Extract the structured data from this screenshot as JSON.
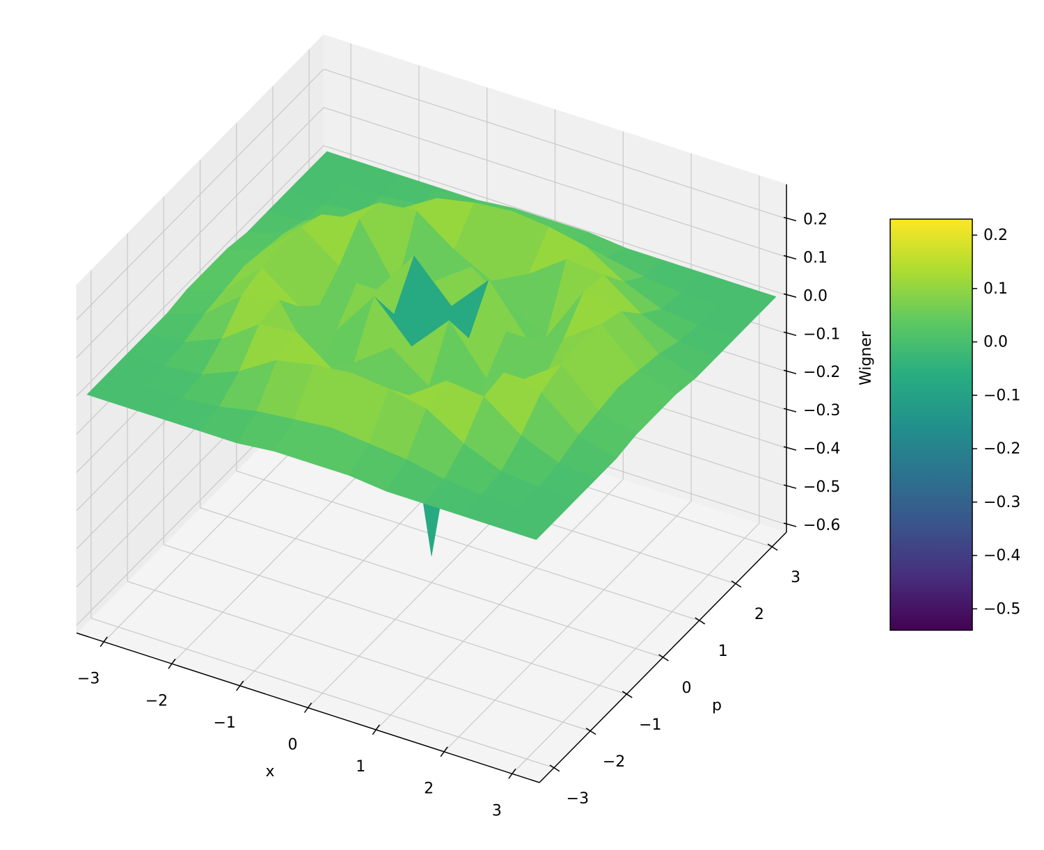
{
  "chart_data": {
    "type": "surface3d",
    "xlabel": "x",
    "ylabel": "p",
    "zlabel": "Wigner",
    "x": [
      -3.3,
      -2.75,
      -2.2,
      -1.65,
      -1.1,
      -0.55,
      0,
      0.55,
      1.1,
      1.65,
      2.2,
      2.75,
      3.3
    ],
    "y": [
      -3.3,
      -2.75,
      -2.2,
      -1.65,
      -1.1,
      -0.55,
      0,
      0.55,
      1.1,
      1.65,
      2.2,
      2.75,
      3.3
    ],
    "z": [
      [
        0,
        0,
        0,
        0,
        0,
        0.01,
        0.01,
        0.01,
        0,
        0,
        0,
        0,
        0
      ],
      [
        0,
        0,
        0,
        0.01,
        0.03,
        0.04,
        0.05,
        0.04,
        0.03,
        0.01,
        0,
        0,
        0
      ],
      [
        0,
        0,
        0.01,
        0.05,
        0.11,
        0.13,
        0.14,
        0.13,
        0.11,
        0.05,
        0.01,
        0,
        0
      ],
      [
        0,
        0.01,
        0.05,
        0.12,
        0.13,
        0.06,
        0.01,
        0.06,
        0.13,
        0.12,
        0.05,
        0.01,
        0
      ],
      [
        0,
        0.03,
        0.11,
        0.13,
        -0.02,
        0.03,
        0.1,
        0.03,
        -0.02,
        0.13,
        0.11,
        0.03,
        0
      ],
      [
        0.01,
        0.04,
        0.13,
        0.06,
        0.03,
        0.15,
        0.05,
        0.15,
        0.03,
        0.06,
        0.13,
        0.04,
        0.01
      ],
      [
        0.01,
        0.05,
        0.14,
        0.01,
        0.1,
        0.05,
        -0.55,
        0.05,
        0.1,
        0.01,
        0.14,
        0.05,
        0.01
      ],
      [
        0.01,
        0.04,
        0.13,
        0.06,
        0.03,
        0.15,
        0.05,
        0.15,
        0.03,
        0.06,
        0.13,
        0.04,
        0.01
      ],
      [
        0,
        0.03,
        0.11,
        0.13,
        -0.02,
        0.03,
        0.1,
        0.03,
        -0.02,
        0.13,
        0.11,
        0.03,
        0
      ],
      [
        0,
        0.01,
        0.05,
        0.12,
        0.13,
        0.06,
        0.01,
        0.06,
        0.13,
        0.12,
        0.05,
        0.01,
        0
      ],
      [
        0,
        0,
        0.01,
        0.05,
        0.11,
        0.13,
        0.14,
        0.13,
        0.11,
        0.05,
        0.01,
        0,
        0
      ],
      [
        0,
        0,
        0,
        0.01,
        0.03,
        0.04,
        0.05,
        0.04,
        0.03,
        0.01,
        0,
        0,
        0
      ],
      [
        0,
        0,
        0,
        0,
        0,
        0.01,
        0.01,
        0.01,
        0,
        0,
        0,
        0,
        0
      ]
    ],
    "xlim": [
      -3.4,
      3.4
    ],
    "ylim": [
      -3.4,
      3.4
    ],
    "zlim": [
      -0.62,
      0.29
    ],
    "xticks": [
      {
        "value": -3,
        "label": "−3"
      },
      {
        "value": -2,
        "label": "−2"
      },
      {
        "value": -1,
        "label": "−1"
      },
      0,
      1,
      2,
      3
    ],
    "yticks": [
      {
        "value": -3,
        "label": "−3"
      },
      {
        "value": -2,
        "label": "−2"
      },
      {
        "value": -1,
        "label": "−1"
      },
      0,
      1,
      2,
      3
    ],
    "zticks": [
      {
        "value": -0.6,
        "label": "−0.6"
      },
      {
        "value": -0.5,
        "label": "−0.5"
      },
      {
        "value": -0.4,
        "label": "−0.4"
      },
      {
        "value": -0.3,
        "label": "−0.3"
      },
      {
        "value": -0.2,
        "label": "−0.2"
      },
      {
        "value": -0.1,
        "label": "−0.1"
      },
      {
        "value": 0,
        "label": "0.0"
      },
      0.1,
      0.2
    ],
    "colormap": "viridis",
    "colorbar": {
      "lim": [
        -0.54,
        0.23
      ],
      "ticks": [
        {
          "value": -0.5,
          "label": "−0.5"
        },
        {
          "value": -0.4,
          "label": "−0.4"
        },
        {
          "value": -0.3,
          "label": "−0.3"
        },
        {
          "value": -0.2,
          "label": "−0.2"
        },
        {
          "value": -0.1,
          "label": "−0.1"
        },
        {
          "value": 0,
          "label": "0.0"
        },
        0.1,
        0.2
      ]
    },
    "grid": true
  }
}
